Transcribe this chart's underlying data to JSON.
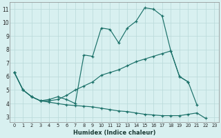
{
  "xlabel": "Humidex (Indice chaleur)",
  "background_color": "#d8f0f0",
  "grid_color": "#b8d8d8",
  "line_color": "#1a7068",
  "xlim": [
    -0.5,
    23.5
  ],
  "ylim": [
    2.6,
    11.5
  ],
  "xticks": [
    0,
    1,
    2,
    3,
    4,
    5,
    6,
    7,
    8,
    9,
    10,
    11,
    12,
    13,
    14,
    15,
    16,
    17,
    18,
    19,
    20,
    21,
    22,
    23
  ],
  "yticks": [
    3,
    4,
    5,
    6,
    7,
    8,
    9,
    10,
    11
  ],
  "line1_x": [
    0,
    1,
    2,
    3,
    4,
    5,
    6,
    7,
    8,
    9,
    10,
    11,
    12,
    13,
    14,
    15,
    16,
    17,
    18,
    19,
    20,
    21
  ],
  "line1_y": [
    6.3,
    5.0,
    4.5,
    4.2,
    4.3,
    4.5,
    4.3,
    4.0,
    7.6,
    7.5,
    9.6,
    9.5,
    8.5,
    9.6,
    10.1,
    11.1,
    11.0,
    10.5,
    7.9,
    6.0,
    5.6,
    3.9
  ],
  "line2_x": [
    0,
    1,
    2,
    3,
    4,
    5,
    6,
    7,
    8,
    9,
    10,
    11,
    12,
    13,
    14,
    15,
    16,
    17,
    18,
    19,
    20
  ],
  "line2_y": [
    6.3,
    5.0,
    4.5,
    4.2,
    4.2,
    4.3,
    4.6,
    5.0,
    5.3,
    5.6,
    6.1,
    6.3,
    6.5,
    6.8,
    7.1,
    7.3,
    7.5,
    7.7,
    7.9,
    6.0,
    5.6
  ],
  "line3_x": [
    0,
    1,
    2,
    3,
    4,
    5,
    6,
    7,
    8,
    9,
    10,
    11,
    12,
    13,
    14,
    15,
    16,
    17,
    18,
    19,
    20,
    21,
    22
  ],
  "line3_y": [
    6.3,
    5.0,
    4.5,
    4.2,
    4.1,
    4.0,
    3.9,
    3.85,
    3.8,
    3.75,
    3.65,
    3.55,
    3.45,
    3.4,
    3.3,
    3.2,
    3.15,
    3.1,
    3.1,
    3.1,
    3.2,
    3.3,
    2.9
  ]
}
